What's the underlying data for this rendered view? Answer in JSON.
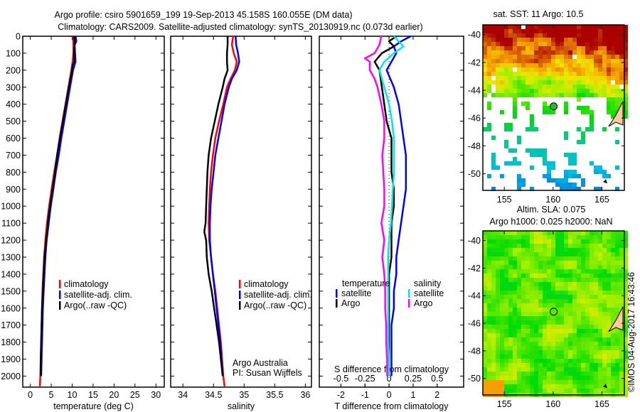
{
  "header": {
    "title_line1": "Argo profile: csiro 5901659_199 19-Sep-2013 45.158S 160.055E (DM data)",
    "title_line2": "Climatology: CARS2009. Satellite-adjusted climatology: synTS_20130919.nc (0.073d earlier)"
  },
  "colors": {
    "climatology": "#ff0000",
    "satellite": "#0000ff",
    "argo": "#000000",
    "sal_satellite": "#00e5e5",
    "sal_argo": "#ff00ff"
  },
  "chart_data": [
    {
      "type": "line",
      "id": "temperature",
      "xlabel": "temperature (deg C)",
      "ylabel": "",
      "xlim": [
        -1.8,
        32
      ],
      "ylim": [
        2065,
        0
      ],
      "xticks": [
        0,
        5,
        10,
        15,
        20,
        25,
        30
      ],
      "yticks": [
        0,
        100,
        200,
        300,
        400,
        500,
        600,
        700,
        800,
        900,
        1000,
        1100,
        1200,
        1300,
        1400,
        1500,
        1600,
        1700,
        1800,
        1900,
        2000
      ],
      "legend": [
        "climatology",
        "satellite-adj. clim.",
        "Argo(..raw -QC)"
      ],
      "legend_position": "center",
      "series": [
        {
          "name": "climatology",
          "color_key": "climatology",
          "depth": [
            0,
            50,
            100,
            150,
            200,
            300,
            400,
            500,
            600,
            700,
            800,
            900,
            1000,
            1100,
            1200,
            1300,
            1400,
            1500,
            1600,
            1700,
            1800,
            1900,
            2000,
            2060
          ],
          "values": [
            10.2,
            10.3,
            10.3,
            10.1,
            9.8,
            9.1,
            8.4,
            7.7,
            7.0,
            6.4,
            5.7,
            5.1,
            4.5,
            4.0,
            3.6,
            3.3,
            3.1,
            2.9,
            2.8,
            2.7,
            2.6,
            2.5,
            2.4,
            2.3
          ]
        },
        {
          "name": "satellite-adj. clim.",
          "color_key": "satellite",
          "depth": [
            0,
            30,
            50,
            100,
            150,
            200,
            300,
            400,
            500,
            600,
            700,
            800,
            900,
            1000,
            1100,
            1200,
            1300,
            1400,
            1500,
            1600,
            1700,
            1800,
            1900,
            2000
          ],
          "values": [
            10.8,
            11.0,
            10.6,
            10.7,
            10.8,
            10.2,
            9.5,
            8.8,
            8.1,
            7.4,
            6.8,
            6.1,
            5.5,
            4.9,
            4.4,
            3.9,
            3.6,
            3.4,
            3.2,
            3.0,
            2.9,
            2.8,
            2.7,
            2.6
          ]
        },
        {
          "name": "Argo(..raw -QC)",
          "color_key": "argo",
          "depth": [
            0,
            50,
            100,
            150,
            170,
            200,
            300,
            400,
            500,
            600,
            700,
            800,
            900,
            1000,
            1100,
            1200,
            1300,
            1400,
            1500,
            1600,
            1700,
            1800,
            1900,
            2000
          ],
          "values": [
            10.5,
            10.6,
            10.4,
            10.5,
            10.1,
            10.0,
            9.2,
            8.5,
            7.8,
            7.1,
            6.4,
            5.9,
            5.3,
            4.7,
            4.2,
            3.8,
            3.4,
            3.2,
            3.0,
            2.8,
            2.7,
            2.6,
            2.5,
            2.5
          ]
        }
      ]
    },
    {
      "type": "line",
      "id": "salinity",
      "xlabel": "salinity",
      "ylabel": "",
      "xlim": [
        33.8,
        36.1
      ],
      "ylim": [
        2065,
        0
      ],
      "xticks": [
        34,
        34.5,
        35,
        35.5,
        36
      ],
      "legend": [
        "climatology",
        "satellite-adj. clim.",
        "Argo(..raw -QC)"
      ],
      "legend_position": "center-right",
      "annotation": [
        "Argo Australia",
        "PI: Susan Wijffels"
      ],
      "series": [
        {
          "name": "climatology",
          "color_key": "climatology",
          "depth": [
            0,
            50,
            100,
            150,
            200,
            250,
            300,
            400,
            500,
            600,
            700,
            800,
            900,
            1000,
            1100,
            1200,
            1300,
            1400,
            1500,
            1600,
            1700,
            1800,
            1900,
            2000,
            2060
          ],
          "values": [
            34.82,
            34.8,
            34.83,
            34.88,
            34.85,
            34.78,
            34.72,
            34.66,
            34.59,
            34.53,
            34.49,
            34.46,
            34.44,
            34.43,
            34.42,
            34.43,
            34.46,
            34.49,
            34.53,
            34.56,
            34.59,
            34.62,
            34.64,
            34.66,
            34.68
          ]
        },
        {
          "name": "satellite-adj. clim.",
          "color_key": "satellite",
          "depth": [
            0,
            50,
            100,
            150,
            200,
            250,
            300,
            400,
            500,
            600,
            700,
            800,
            900,
            1000,
            1100,
            1200,
            1300,
            1400,
            1500,
            1600,
            1700,
            1800,
            1900,
            2000
          ],
          "values": [
            34.86,
            34.87,
            34.9,
            34.92,
            34.88,
            34.8,
            34.75,
            34.68,
            34.63,
            34.58,
            34.53,
            34.5,
            34.47,
            34.45,
            34.44,
            34.44,
            34.46,
            34.49,
            34.52,
            34.55,
            34.58,
            34.61,
            34.63,
            34.65
          ]
        },
        {
          "name": "Argo(..raw -QC)",
          "color_key": "argo",
          "depth": [
            0,
            50,
            100,
            150,
            200,
            250,
            300,
            400,
            500,
            600,
            700,
            800,
            900,
            1000,
            1100,
            1150,
            1200,
            1300,
            1400,
            1500,
            1600,
            1700,
            1800,
            1900,
            2000
          ],
          "values": [
            34.73,
            34.73,
            34.72,
            34.72,
            34.73,
            34.68,
            34.65,
            34.58,
            34.52,
            34.46,
            34.42,
            34.4,
            34.39,
            34.38,
            34.37,
            34.35,
            34.38,
            34.39,
            34.42,
            34.47,
            34.51,
            34.55,
            34.59,
            34.62,
            34.65
          ]
        }
      ]
    },
    {
      "type": "line",
      "id": "differences",
      "xlabel": "T difference from climatology",
      "xlabel2": "S difference from climatology",
      "xlim": [
        -2.9,
        3.1
      ],
      "ylim": [
        2065,
        0
      ],
      "xticks": [
        -2,
        -1,
        0,
        1,
        2
      ],
      "xticks2": [
        "-0.5",
        "-0.25",
        "0",
        "0.25",
        "0.5"
      ],
      "x2_scale": 4,
      "legend_temperature_title": "temperature",
      "legend_salinity_title": "salinity",
      "legend": [
        "satellite",
        "Argo",
        "satellite",
        "Argo"
      ],
      "legend_position": "lower-center",
      "series": [
        {
          "name": "temperature satellite",
          "color_key": "satellite",
          "depth": [
            0,
            30,
            60,
            100,
            150,
            200,
            300,
            400,
            500,
            600,
            700,
            800,
            900,
            1000,
            1100,
            1200,
            1300,
            1400,
            1500,
            1600,
            1700,
            1800,
            1900,
            2000
          ],
          "values": [
            0.9,
            0.5,
            0.2,
            0.3,
            0.1,
            -0.1,
            0.2,
            0.4,
            0.5,
            0.6,
            0.7,
            0.7,
            0.7,
            0.6,
            0.5,
            0.4,
            0.3,
            0.3,
            0.2,
            0.2,
            0.1,
            0.1,
            0.1,
            0.1
          ]
        },
        {
          "name": "temperature Argo",
          "color_key": "argo",
          "depth": [
            0,
            30,
            60,
            100,
            150,
            200,
            300,
            400,
            500,
            600,
            700,
            800,
            900,
            1000,
            1100,
            1200,
            1300,
            1400,
            1500,
            1600,
            1700,
            1800,
            1900,
            2000
          ],
          "values": [
            0.3,
            0.0,
            0.2,
            -0.3,
            -0.6,
            -0.4,
            -0.3,
            -0.2,
            -0.1,
            0.1,
            0.1,
            0.1,
            0.2,
            0.2,
            0.1,
            0.1,
            0.1,
            0.0,
            0.0,
            0.0,
            0.0,
            0.0,
            0.0,
            0.0
          ]
        },
        {
          "name": "salinity satellite",
          "color_key": "sal_satellite",
          "depth": [
            0,
            30,
            60,
            100,
            150,
            200,
            300,
            400,
            500,
            600,
            700,
            800,
            900,
            1000,
            1100,
            1200,
            1300,
            1400,
            1500,
            1600,
            1700,
            1800,
            1900,
            2000
          ],
          "values": [
            0.05,
            0.1,
            0.15,
            0.05,
            -0.05,
            -0.1,
            -0.05,
            0.0,
            0.03,
            0.05,
            0.05,
            0.05,
            0.04,
            0.03,
            0.02,
            0.0,
            -0.01,
            -0.01,
            -0.01,
            -0.01,
            -0.01,
            -0.01,
            0.0,
            0.0
          ]
        },
        {
          "name": "salinity Argo",
          "color_key": "sal_argo",
          "depth": [
            0,
            50,
            100,
            130,
            150,
            200,
            250,
            300,
            400,
            500,
            600,
            700,
            800,
            900,
            1000,
            1100,
            1200,
            1300,
            1400,
            1500,
            1600,
            1700,
            1800,
            1900,
            2000
          ],
          "values": [
            -0.08,
            -0.1,
            -0.15,
            -0.25,
            -0.2,
            -0.2,
            -0.15,
            -0.12,
            -0.08,
            -0.05,
            -0.05,
            -0.07,
            -0.06,
            -0.05,
            -0.05,
            -0.08,
            -0.05,
            -0.07,
            -0.05,
            -0.04,
            -0.04,
            -0.03,
            -0.03,
            -0.02,
            -0.02
          ]
        }
      ]
    },
    {
      "type": "heatmap",
      "id": "sst-map",
      "title": "sat. SST: 11 Argo: 10.5",
      "xlim": [
        152.8,
        167.3
      ],
      "ylim": [
        -51.2,
        -39.3
      ],
      "xticks": [
        155,
        160,
        165
      ],
      "yticks": [
        -40,
        -42,
        -44,
        -46,
        -48,
        -50
      ],
      "marker": {
        "lon": 160.055,
        "lat": -45.158
      }
    },
    {
      "type": "heatmap",
      "id": "sla-map",
      "title_line1": "Altim. SLA: 0.075",
      "title_line2": "Argo h1000: 0.025 h2000: NaN",
      "xlim": [
        152.8,
        167.3
      ],
      "ylim": [
        -51.2,
        -39.3
      ],
      "xticks": [
        155,
        160,
        165
      ],
      "yticks": [
        -40,
        -42,
        -44,
        -46,
        -48,
        -50
      ],
      "marker": {
        "lon": 160.055,
        "lat": -45.158
      }
    }
  ],
  "footer": {
    "credit": "©IMOS 04-Aug-2017 16:43:46"
  }
}
